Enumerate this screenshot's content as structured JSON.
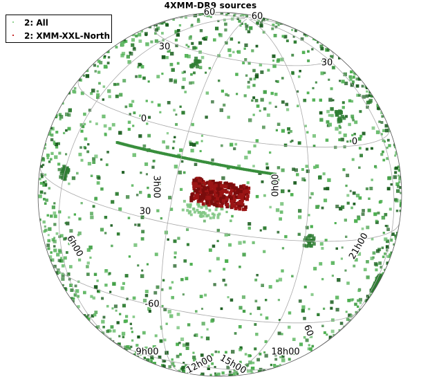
{
  "chart_data": {
    "type": "scatter",
    "title": "4XMM-DR9 sources",
    "projection": "sphere",
    "grid": true,
    "legend_position": "top-left",
    "colors": {
      "background": "#ffffff",
      "grid": "#a8a8a8",
      "sphere_edge": "#555555",
      "all": [
        "#2e7d32",
        "#43a047",
        "#66bb6a",
        "#1b5e20",
        "#4caf50"
      ],
      "xxl_north": "#7a0c0c"
    },
    "series": [
      {
        "name": "2: All",
        "marker_color": "#43a047",
        "points_shown": "randomised density",
        "seed": 42
      },
      {
        "name": "2: XMM-XXL-North",
        "marker_color": "#b71c1c",
        "center": [
          60,
          12
        ],
        "extent_deg": 7
      }
    ],
    "grid_labels": {
      "lat": [
        "60",
        "60",
        "30",
        "30",
        "0",
        "0",
        "30",
        "-60",
        "60"
      ],
      "lon": [
        "0h00",
        "3h00",
        "6h00",
        "9h00",
        "12h00",
        "15h00",
        "18h00",
        "21h00"
      ]
    }
  },
  "legend": {
    "items": [
      {
        "label": "2: All",
        "color": "#4caf50"
      },
      {
        "label": "2: XMM-XXL-North",
        "color": "#c62828"
      }
    ]
  }
}
